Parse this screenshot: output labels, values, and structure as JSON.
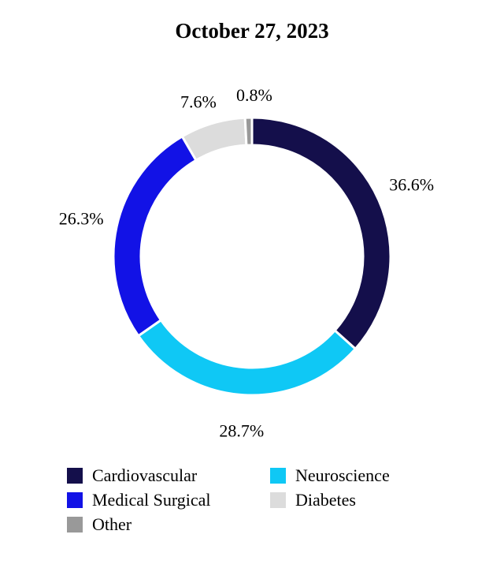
{
  "chart_data": {
    "type": "pie",
    "donut": true,
    "title": "October 27, 2023",
    "slices": [
      {
        "name": "Cardiovascular",
        "value": 36.6,
        "label": "36.6%",
        "color": "#140f4b"
      },
      {
        "name": "Neuroscience",
        "value": 28.7,
        "label": "28.7%",
        "color": "#0fc8f5"
      },
      {
        "name": "Medical Surgical",
        "value": 26.3,
        "label": "26.3%",
        "color": "#1212e6"
      },
      {
        "name": "Diabetes",
        "value": 7.6,
        "label": "7.6%",
        "color": "#dcdcdc"
      },
      {
        "name": "Other",
        "value": 0.8,
        "label": "0.8%",
        "color": "#999999"
      }
    ],
    "start": "top",
    "direction": "clockwise",
    "legend_placement": "bottom",
    "legend": [
      "Cardiovascular",
      "Neuroscience",
      "Medical Surgical",
      "Diabetes",
      "Other"
    ]
  }
}
